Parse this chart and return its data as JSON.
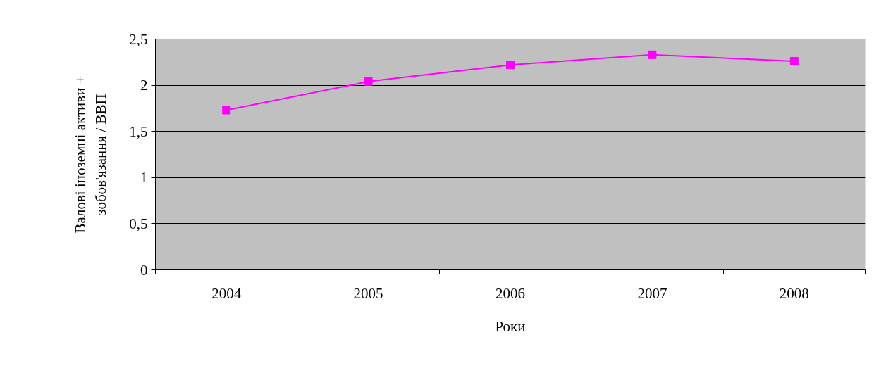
{
  "chart_data": {
    "type": "line",
    "xlabel": "Роки",
    "ylabel": "Валові іноземні активи + зобов'язання / ВВП",
    "categories": [
      "2004",
      "2005",
      "2006",
      "2007",
      "2008"
    ],
    "series": [
      {
        "color": "#ff00ff",
        "values": [
          1.73,
          2.04,
          2.22,
          2.33,
          2.26
        ]
      }
    ],
    "ylim": [
      0,
      2.5
    ],
    "yticks": [
      0,
      {
        "value": 0.5,
        "label": "0,5"
      },
      1,
      {
        "value": 1.5,
        "label": "1,5"
      },
      2,
      {
        "value": 2.5,
        "label": "2,5"
      }
    ],
    "grid": "y",
    "marker": "square",
    "line_style": "solid"
  }
}
